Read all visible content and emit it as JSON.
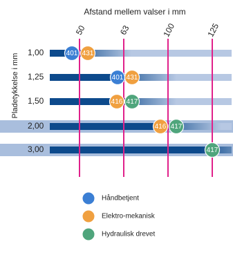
{
  "header": {
    "title": "Afstand mellem valser i mm",
    "y_label": "Pladetykkelse i mm"
  },
  "columns": [
    "50",
    "63",
    "100",
    "125"
  ],
  "rows": [
    {
      "label": "1,00",
      "badges": [
        {
          "label": "401",
          "color": "#3b7fd4"
        },
        {
          "label": "431",
          "color": "#f0a040"
        }
      ]
    },
    {
      "label": "1,25",
      "badges": [
        {
          "label": "401",
          "color": "#3b7fd4"
        },
        {
          "label": "431",
          "color": "#f0a040"
        }
      ]
    },
    {
      "label": "1,50",
      "badges": [
        {
          "label": "416",
          "color": "#f0a040"
        },
        {
          "label": "417",
          "color": "#4fa57c"
        }
      ]
    },
    {
      "label": "2,00",
      "badges": [
        {
          "label": "416",
          "color": "#f0a040"
        },
        {
          "label": "417",
          "color": "#4fa57c"
        }
      ]
    },
    {
      "label": "3,00",
      "badges": [
        {
          "label": "417",
          "color": "#4fa57c"
        }
      ]
    }
  ],
  "legend": [
    {
      "label": "Håndbetjent",
      "color": "#3b7fd4"
    },
    {
      "label": "Elektro-mekanisk",
      "color": "#f0a040"
    },
    {
      "label": "Hydraulisk drevet",
      "color": "#4fa57c"
    }
  ]
}
